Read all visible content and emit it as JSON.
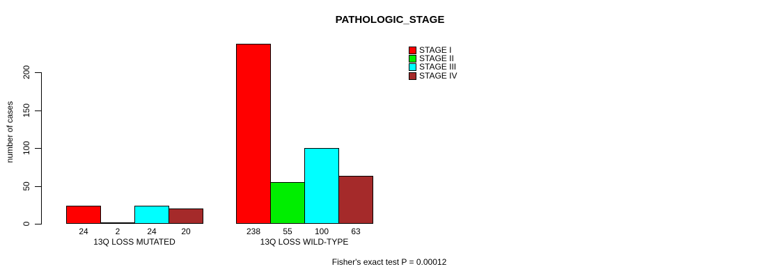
{
  "title": "PATHOLOGIC_STAGE",
  "footer": {
    "caption": "Fisher's exact test P = 0.00012"
  },
  "chart_data": {
    "type": "bar",
    "title": "PATHOLOGIC_STAGE",
    "xlabel": "",
    "ylabel": "number of cases",
    "ylim": [
      0,
      200
    ],
    "yticks": [
      0,
      50,
      100,
      150,
      200
    ],
    "grid": false,
    "legend_position": "top-right",
    "categories": [
      "13Q LOSS MUTATED",
      "13Q LOSS WILD-TYPE"
    ],
    "series": [
      {
        "name": "STAGE I",
        "color": "#FF0000",
        "values": [
          24,
          238
        ]
      },
      {
        "name": "STAGE II",
        "color": "#00EE00",
        "values": [
          2,
          55
        ]
      },
      {
        "name": "STAGE III",
        "color": "#00FFFF",
        "values": [
          24,
          100
        ]
      },
      {
        "name": "STAGE IV",
        "color": "#A52A2A",
        "values": [
          20,
          63
        ]
      }
    ],
    "bar_value_labels": true,
    "annotation": "Fisher's exact test P = 0.00012"
  }
}
